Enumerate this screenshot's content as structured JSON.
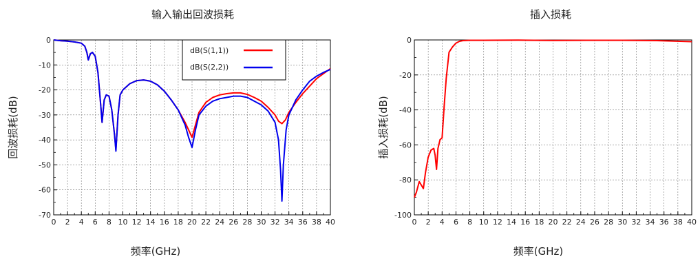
{
  "chart_data": [
    {
      "type": "line",
      "title": "输入输出回波损耗",
      "xlabel": "频率(GHz)",
      "ylabel": "回波损耗(dB)",
      "xlim": [
        0,
        40
      ],
      "ylim": [
        -70,
        0
      ],
      "xticks": [
        0,
        2,
        4,
        6,
        8,
        10,
        12,
        14,
        16,
        18,
        20,
        22,
        24,
        26,
        28,
        30,
        32,
        34,
        36,
        38,
        40
      ],
      "yticks": [
        0,
        -10,
        -20,
        -30,
        -40,
        -50,
        -60,
        -70
      ],
      "grid": true,
      "legend_position": "top-right",
      "series": [
        {
          "name": "dB(S(1,1))",
          "color": "#ff0000",
          "x": [
            0,
            1,
            2,
            3,
            4,
            4.5,
            4.8,
            5.0,
            5.3,
            5.6,
            6.0,
            6.4,
            6.8,
            7.0,
            7.3,
            7.6,
            8.0,
            8.4,
            8.8,
            9.0,
            9.3,
            9.6,
            10,
            11,
            12,
            13,
            14,
            15,
            16,
            17,
            18,
            19,
            19.5,
            20,
            20.5,
            21,
            22,
            23,
            24,
            25,
            26,
            27,
            28,
            29,
            30,
            31,
            32,
            32.5,
            33,
            33.5,
            34,
            35,
            36,
            37,
            38,
            39,
            40
          ],
          "values": [
            0,
            -0.3,
            -0.5,
            -0.8,
            -1.3,
            -2.5,
            -5,
            -8,
            -5.5,
            -5,
            -6.5,
            -13,
            -26,
            -33,
            -24,
            -22,
            -22.5,
            -28,
            -38,
            -44,
            -30,
            -22,
            -20,
            -17.5,
            -16.3,
            -16,
            -16.5,
            -18,
            -20.5,
            -24,
            -28,
            -33,
            -36,
            -39,
            -34,
            -29,
            -25,
            -23,
            -22,
            -21.5,
            -21.2,
            -21.2,
            -21.8,
            -23,
            -24.5,
            -27,
            -30,
            -32.5,
            -33.5,
            -32,
            -29,
            -25,
            -21.5,
            -18.5,
            -15.5,
            -13.5,
            -11.5
          ]
        },
        {
          "name": "dB(S(2,2))",
          "color": "#0000ee",
          "x": [
            0,
            1,
            2,
            3,
            4,
            4.5,
            4.8,
            5.0,
            5.3,
            5.6,
            6.0,
            6.4,
            6.8,
            7.0,
            7.3,
            7.6,
            8.0,
            8.4,
            8.8,
            9.0,
            9.3,
            9.6,
            10,
            11,
            12,
            13,
            14,
            15,
            16,
            17,
            18,
            19,
            19.5,
            20,
            20.5,
            21,
            22,
            23,
            24,
            25,
            26,
            27,
            28,
            29,
            30,
            31,
            32,
            32.5,
            32.8,
            33,
            33.2,
            33.6,
            34,
            35,
            36,
            37,
            38,
            39,
            40
          ],
          "values": [
            0,
            -0.3,
            -0.5,
            -0.8,
            -1.3,
            -2.5,
            -5,
            -8,
            -5.5,
            -5,
            -6.5,
            -13,
            -26,
            -33,
            -24,
            -22,
            -22.5,
            -28,
            -38,
            -44.5,
            -30,
            -22,
            -20,
            -17.5,
            -16.3,
            -16,
            -16.5,
            -18,
            -20.5,
            -24,
            -28,
            -34,
            -39,
            -43,
            -36,
            -30,
            -26.5,
            -24.5,
            -23.5,
            -23,
            -22.5,
            -22.5,
            -23,
            -24.5,
            -26,
            -28.5,
            -33,
            -40,
            -52,
            -64.5,
            -50,
            -36,
            -30,
            -24,
            -20,
            -16.5,
            -14.5,
            -13,
            -11.8
          ]
        }
      ]
    },
    {
      "type": "line",
      "title": "插入损耗",
      "xlabel": "频率(GHz)",
      "ylabel": "插入损耗(dB)",
      "xlim": [
        0,
        40
      ],
      "ylim": [
        -100,
        0
      ],
      "xticks": [
        0,
        2,
        4,
        6,
        8,
        10,
        12,
        14,
        16,
        18,
        20,
        22,
        24,
        26,
        28,
        30,
        32,
        34,
        36,
        38,
        40
      ],
      "yticks": [
        0,
        -20,
        -40,
        -60,
        -80,
        -100
      ],
      "grid": true,
      "series": [
        {
          "color": "#ff0000",
          "x": [
            0,
            0.3,
            0.7,
            1.0,
            1.3,
            1.6,
            2.0,
            2.4,
            2.8,
            3.0,
            3.2,
            3.4,
            3.7,
            4.0,
            4.3,
            4.6,
            5.0,
            5.5,
            6.0,
            6.5,
            7,
            8,
            10,
            15,
            20,
            25,
            30,
            35,
            40
          ],
          "values": [
            -90,
            -87,
            -81,
            -83,
            -85,
            -76,
            -67,
            -63,
            -62,
            -66,
            -74,
            -62,
            -57,
            -56,
            -38,
            -22,
            -7,
            -4,
            -1.8,
            -0.8,
            -0.4,
            -0.2,
            -0.2,
            -0.1,
            -0.3,
            -0.2,
            -0.2,
            -0.4,
            -1.0
          ]
        }
      ]
    }
  ]
}
